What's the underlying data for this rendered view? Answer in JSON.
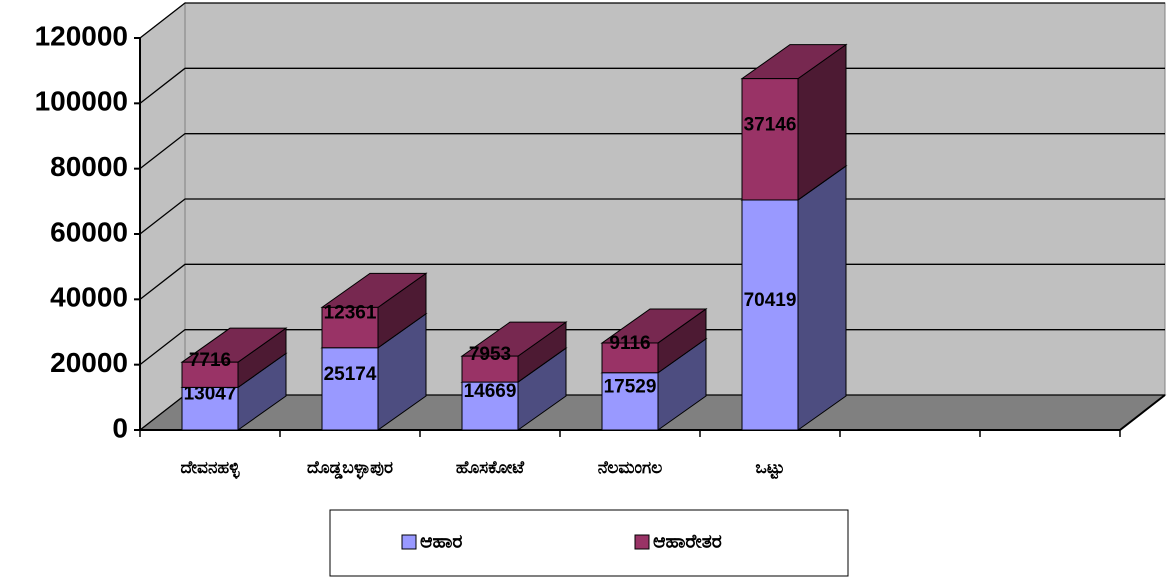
{
  "chart_data": {
    "type": "bar3d_stacked",
    "categories": [
      "ದೇವನಹಳ್ಳಿ",
      "ದೊಡ್ಡಬಳ್ಳಾಪುರ",
      "ಹೊಸಕೋಟೆ",
      "ನೆಲಮಂಗಲ",
      "ಒಟ್ಟು",
      null,
      null
    ],
    "series": [
      {
        "name": "ಆಹಾರ",
        "color": "#9999ff",
        "values": [
          13047,
          25174,
          14669,
          17529,
          70419,
          null,
          null
        ]
      },
      {
        "name": "ಆಹಾರೇತರ",
        "color": "#993366",
        "values": [
          7716,
          12361,
          7953,
          9116,
          37146,
          null,
          null
        ]
      }
    ],
    "ylim": [
      0,
      120000
    ],
    "yticks": [
      0,
      20000,
      40000,
      60000,
      80000,
      100000,
      120000
    ],
    "grid": true,
    "legend": "bottom"
  }
}
